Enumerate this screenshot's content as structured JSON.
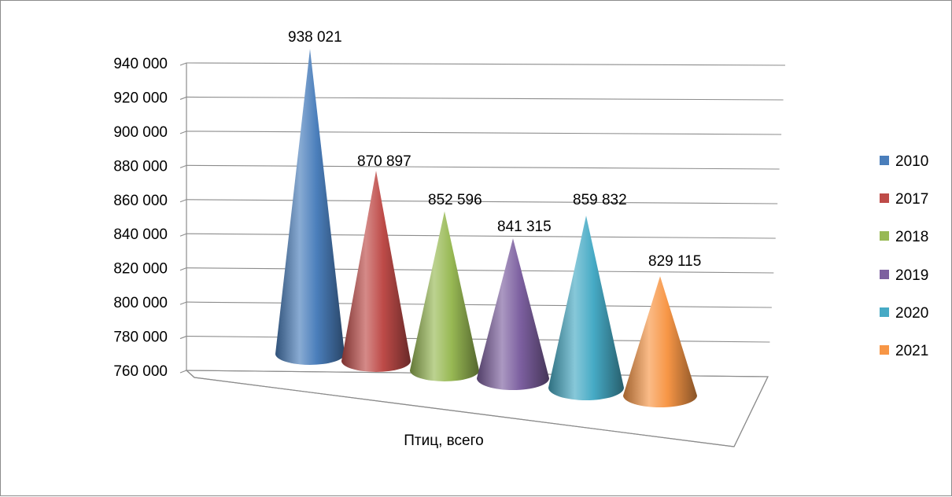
{
  "chart_data": {
    "type": "bar",
    "shape": "cone",
    "view": "3d",
    "categories": [
      "Птиц, всего"
    ],
    "series": [
      {
        "name": "2010",
        "values": [
          938021
        ],
        "label": "938 021",
        "color": "#4a7ebb"
      },
      {
        "name": "2017",
        "values": [
          870897
        ],
        "label": "870 897",
        "color": "#be4b48"
      },
      {
        "name": "2018",
        "values": [
          852596
        ],
        "label": "852 596",
        "color": "#98b954"
      },
      {
        "name": "2019",
        "values": [
          841315
        ],
        "label": "841 315",
        "color": "#7d60a0"
      },
      {
        "name": "2020",
        "values": [
          859832
        ],
        "label": "859 832",
        "color": "#46aac5"
      },
      {
        "name": "2021",
        "values": [
          829115
        ],
        "label": "829 115",
        "color": "#f79646"
      }
    ],
    "title": "",
    "xlabel": "",
    "ylabel": "",
    "ylim": [
      760000,
      940000
    ],
    "yticks": [
      "760 000",
      "780 000",
      "800 000",
      "820 000",
      "840 000",
      "860 000",
      "880 000",
      "900 000",
      "920 000",
      "940 000"
    ],
    "grid": true,
    "legend_position": "right"
  }
}
